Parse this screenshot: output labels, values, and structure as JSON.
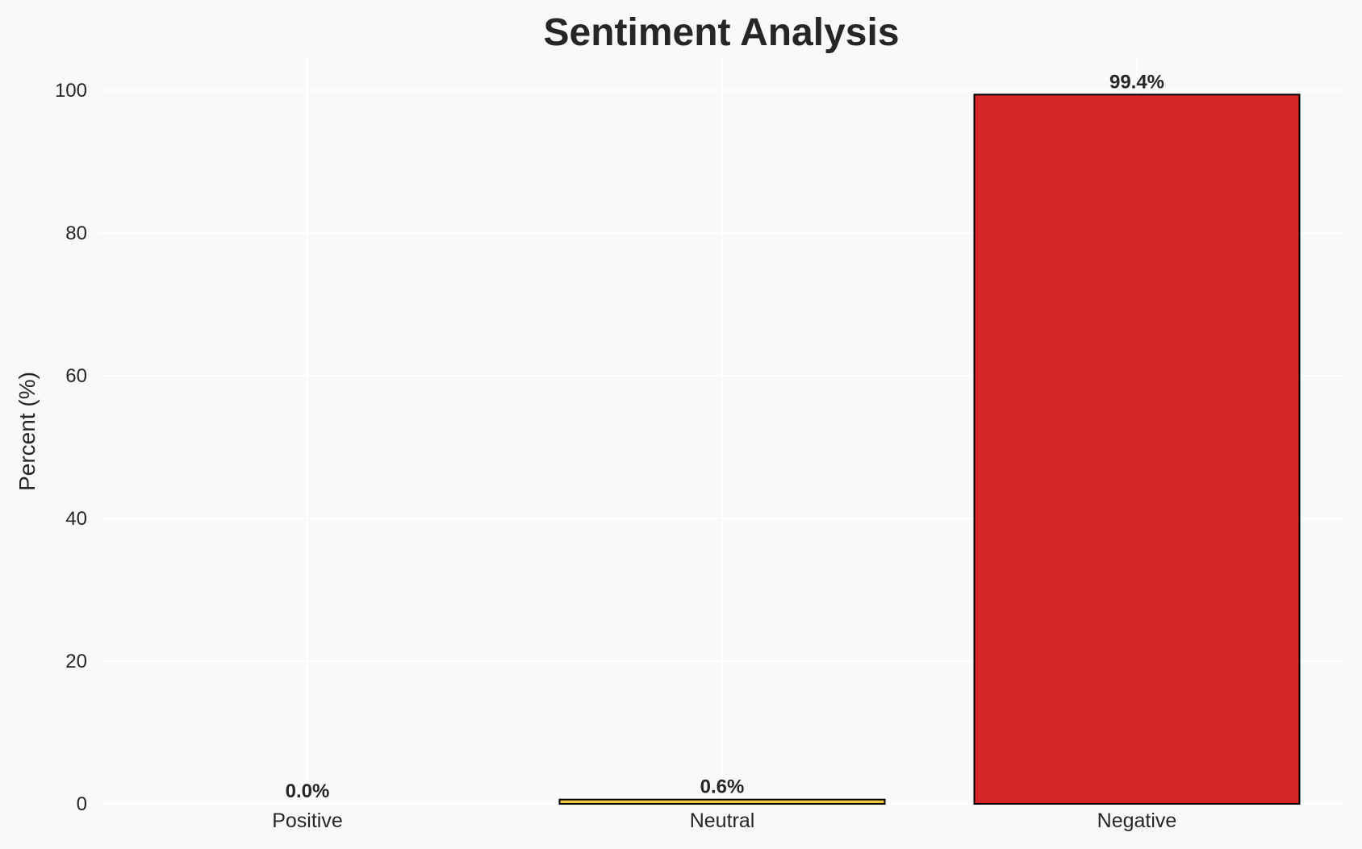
{
  "chart_data": {
    "type": "bar",
    "title": "Sentiment Analysis",
    "xlabel": "",
    "ylabel": "Percent (%)",
    "categories": [
      "Positive",
      "Neutral",
      "Negative"
    ],
    "values": [
      0.0,
      0.6,
      99.4
    ],
    "data_labels": [
      "0.0%",
      "0.6%",
      "99.4%"
    ],
    "colors": [
      "#2ca02c",
      "#f5c842",
      "#d62728"
    ],
    "edge_color": "#000000",
    "ylim": [
      0,
      104.4
    ],
    "yticks": [
      0,
      20,
      40,
      60,
      80,
      100
    ],
    "grid": true,
    "background": "#f9f9f9"
  }
}
